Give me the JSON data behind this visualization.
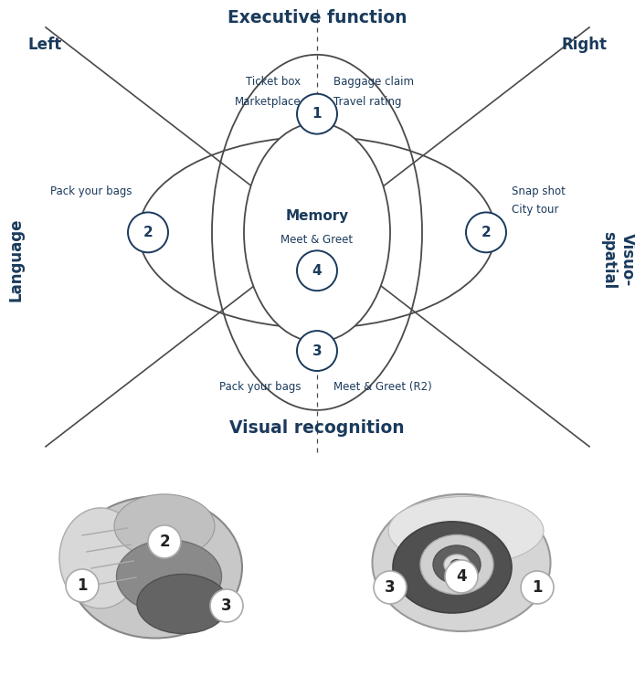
{
  "title_top": "Executive function",
  "title_bottom": "Visual recognition",
  "label_left": "Left",
  "label_right": "Right",
  "label_language": "Language",
  "label_visuo": "Visuo-\nspatial",
  "center_title": "Memory",
  "center_sub": "Meet & Greet",
  "top_left_labels": [
    "Ticket box",
    "Marketplace"
  ],
  "top_right_labels": [
    "Baggage claim",
    "Travel rating"
  ],
  "mid_left_label": "Pack your bags",
  "mid_right_labels": [
    "Snap shot",
    "City tour"
  ],
  "bot_left_label": "Pack your bags",
  "bot_right_label": "Meet & Greet (R2)",
  "dark_blue": "#1a3a5c",
  "line_color": "#4a4a4a",
  "bg_color": "#ffffff",
  "fig_w": 6.95,
  "fig_h": 7.41,
  "dpi": 100
}
